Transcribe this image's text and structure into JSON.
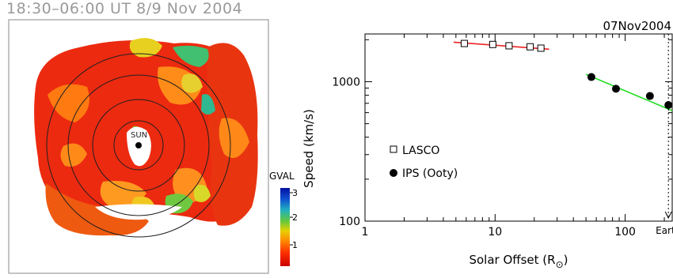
{
  "map": {
    "title": "18:30–06:00 UT 8/9 Nov 2004",
    "sun_label": "SUN",
    "colorbar": {
      "label": "GVAL",
      "ticks": [
        "1",
        "2",
        "3"
      ],
      "colors": [
        "#dd0000",
        "#ff3300",
        "#ff8800",
        "#e8d000",
        "#60c840",
        "#20b0c0",
        "#1050d0",
        "#0010a0"
      ]
    }
  },
  "chart_data": {
    "type": "scatter",
    "title": "07Nov2004",
    "xlabel": "Solar Offset (R⊙)",
    "xlabel_main": "Solar Offset (R",
    "xlabel_sub": "⊙",
    "xlabel_end": ")",
    "ylabel": "Speed (km/s)",
    "xscale": "log",
    "yscale": "log",
    "xlim": [
      1,
      230
    ],
    "ylim": [
      100,
      2200
    ],
    "xticks": [
      {
        "value": 1,
        "label": "1"
      },
      {
        "value": 10,
        "label": "10"
      },
      {
        "value": 100,
        "label": "100"
      }
    ],
    "yticks": [
      {
        "value": 100,
        "label": "100"
      },
      {
        "value": 1000,
        "label": "1000"
      }
    ],
    "grid": false,
    "legend": "left-middle",
    "series": [
      {
        "name": "LASCO",
        "marker": "open-square",
        "x": [
          5.8,
          9.6,
          12.8,
          18.6,
          22.5
        ],
        "y": [
          1880,
          1850,
          1810,
          1780,
          1740
        ],
        "fit": {
          "x": [
            4.8,
            26
          ],
          "y": [
            1920,
            1710
          ],
          "color": "#ee2222"
        }
      },
      {
        "name": "IPS (Ooty)",
        "marker": "filled-circle",
        "x": [
          55,
          85,
          155,
          215
        ],
        "y": [
          1080,
          890,
          790,
          680
        ],
        "fit": {
          "x": [
            50,
            230
          ],
          "y": [
            1130,
            620
          ],
          "color": "#22dd22"
        }
      }
    ],
    "annotation": {
      "label": "Earth",
      "x": 215
    }
  }
}
